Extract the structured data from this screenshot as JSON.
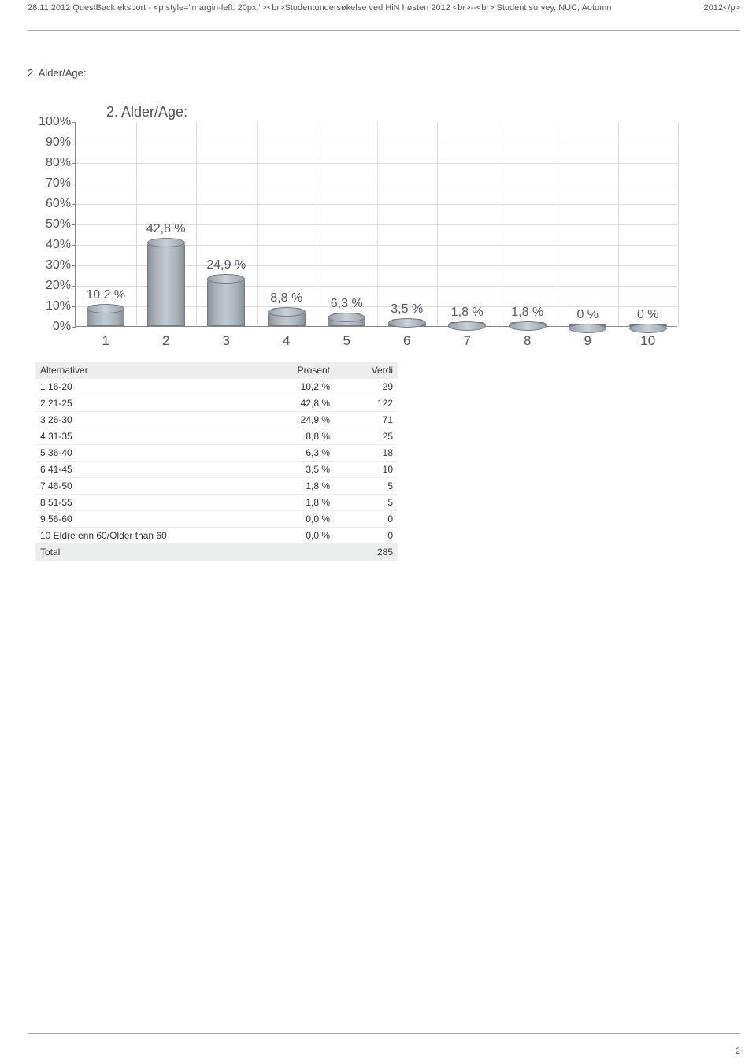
{
  "header": {
    "left": "28.11.2012 QuestBack eksport - <p style=\"margin-left: 20px;\"><br>Studentundersøkelse ved HiN høsten 2012 <br>--<br> Student survey, NUC, Autumn",
    "right2": "2012</p>"
  },
  "question_title": "2. Alder/Age:",
  "chart": {
    "title": "2. Alder/Age:",
    "type": "bar",
    "ylim": [
      0,
      100
    ],
    "ytick_step": 10,
    "y_suffix": "%",
    "bar_fill": "#a8b0b8",
    "bar_border": "#778",
    "background_color": "#ffffff",
    "grid_color": "#dddddd",
    "label_color": "#555555",
    "categories": [
      "1",
      "2",
      "3",
      "4",
      "5",
      "6",
      "7",
      "8",
      "9",
      "10"
    ],
    "values": [
      10.2,
      42.8,
      24.9,
      8.8,
      6.3,
      3.5,
      1.8,
      1.8,
      0,
      0
    ],
    "value_labels": [
      "10,2 %",
      "42,8 %",
      "24,9 %",
      "8,8 %",
      "6,3 %",
      "3,5 %",
      "1,8 %",
      "1,8 %",
      "0 %",
      "0 %"
    ]
  },
  "table": {
    "headers": {
      "alt": "Alternativer",
      "prosent": "Prosent",
      "verdi": "Verdi"
    },
    "rows": [
      {
        "label": "1 16-20",
        "prosent": "10,2 %",
        "verdi": "29"
      },
      {
        "label": "2 21-25",
        "prosent": "42,8 %",
        "verdi": "122"
      },
      {
        "label": "3 26-30",
        "prosent": "24,9 %",
        "verdi": "71"
      },
      {
        "label": "4 31-35",
        "prosent": "8,8 %",
        "verdi": "25"
      },
      {
        "label": "5 36-40",
        "prosent": "6,3 %",
        "verdi": "18"
      },
      {
        "label": "6 41-45",
        "prosent": "3,5 %",
        "verdi": "10"
      },
      {
        "label": "7 46-50",
        "prosent": "1,8 %",
        "verdi": "5"
      },
      {
        "label": "8 51-55",
        "prosent": "1,8 %",
        "verdi": "5"
      },
      {
        "label": "9 56-60",
        "prosent": "0,0 %",
        "verdi": "0"
      },
      {
        "label": "10 Eldre enn 60/Older than 60",
        "prosent": "0,0 %",
        "verdi": "0"
      }
    ],
    "total": {
      "label": "Total",
      "verdi": "285"
    }
  },
  "page_number": "2"
}
